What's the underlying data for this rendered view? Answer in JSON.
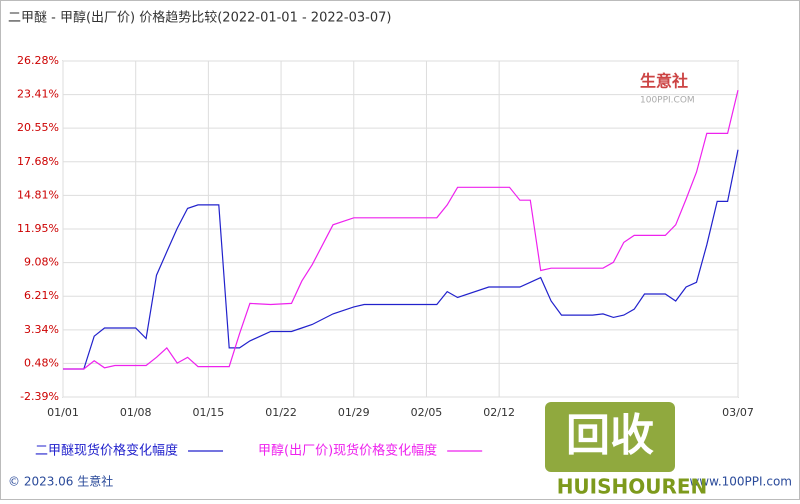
{
  "chart_data": {
    "type": "line",
    "title": "二甲醚 - 甲醇(出厂价) 价格趋势比较(2022-01-01 - 2022-03-07)",
    "x": [
      "01/01",
      "01/03",
      "01/04",
      "01/05",
      "01/06",
      "01/08",
      "01/09",
      "01/10",
      "01/11",
      "01/12",
      "01/13",
      "01/14",
      "01/16",
      "01/17",
      "01/18",
      "01/19",
      "01/21",
      "01/23",
      "01/24",
      "01/25",
      "01/27",
      "01/29",
      "01/30",
      "02/06",
      "02/07",
      "02/08",
      "02/11",
      "02/13",
      "02/14",
      "02/15",
      "02/16",
      "02/17",
      "02/18",
      "02/21",
      "02/22",
      "02/23",
      "02/24",
      "02/25",
      "02/26",
      "02/28",
      "03/01",
      "03/02",
      "03/03",
      "03/04",
      "03/05",
      "03/06",
      "03/07"
    ],
    "series": [
      {
        "name": "二甲醚现货价格变化幅度",
        "color": "#2222cc",
        "values": [
          0,
          0,
          2.8,
          3.5,
          3.5,
          3.5,
          2.6,
          8.0,
          10.0,
          12.0,
          13.7,
          14.0,
          14.0,
          1.8,
          1.8,
          2.4,
          3.2,
          3.2,
          3.5,
          3.8,
          4.7,
          5.3,
          5.5,
          5.5,
          6.6,
          6.1,
          7.0,
          7.0,
          7.0,
          7.4,
          7.8,
          5.8,
          4.6,
          4.6,
          4.7,
          4.4,
          4.6,
          5.1,
          6.4,
          6.4,
          5.8,
          7.0,
          7.4,
          10.6,
          14.3,
          14.3,
          18.7
        ]
      },
      {
        "name": "甲醇(出厂价)现货价格变化幅度",
        "color": "#ee22ee",
        "values": [
          0,
          0,
          0.7,
          0.1,
          0.3,
          0.3,
          0.3,
          1.0,
          1.8,
          0.5,
          1.0,
          0.2,
          0.2,
          0.2,
          3.0,
          5.6,
          5.5,
          5.6,
          7.5,
          8.9,
          12.3,
          12.9,
          12.9,
          12.9,
          14.0,
          15.5,
          15.5,
          15.5,
          14.4,
          14.4,
          8.4,
          8.6,
          8.6,
          8.6,
          8.6,
          9.1,
          10.8,
          11.4,
          11.4,
          11.4,
          12.3,
          14.5,
          16.8,
          20.1,
          20.1,
          20.1,
          23.8
        ]
      }
    ],
    "xlim": [
      "01/01",
      "03/07"
    ],
    "xticks": [
      "01/01",
      "01/08",
      "01/15",
      "01/22",
      "01/29",
      "02/05",
      "02/12",
      "03/07"
    ],
    "ylim": [
      -2.39,
      26.28
    ],
    "yticks": [
      {
        "value": -2.39,
        "label": "-2.39%"
      },
      {
        "value": 0.48,
        "label": "0.48%"
      },
      {
        "value": 3.34,
        "label": "3.34%"
      },
      {
        "value": 6.21,
        "label": "6.21%"
      },
      {
        "value": 9.08,
        "label": "9.08%"
      },
      {
        "value": 11.95,
        "label": "11.95%"
      },
      {
        "value": 14.81,
        "label": "14.81%"
      },
      {
        "value": 17.68,
        "label": "17.68%"
      },
      {
        "value": 20.55,
        "label": "20.55%"
      },
      {
        "value": 23.41,
        "label": "23.41%"
      },
      {
        "value": 26.28,
        "label": "26.28%"
      }
    ],
    "grid": true,
    "logo": "生意社",
    "logo_url": "100PPI.COM",
    "footer": "© 2023.06 生意社",
    "footer_url": "www.100PPI.com",
    "watermark": "回收",
    "watermark_sub": "HUISHOUREN"
  }
}
